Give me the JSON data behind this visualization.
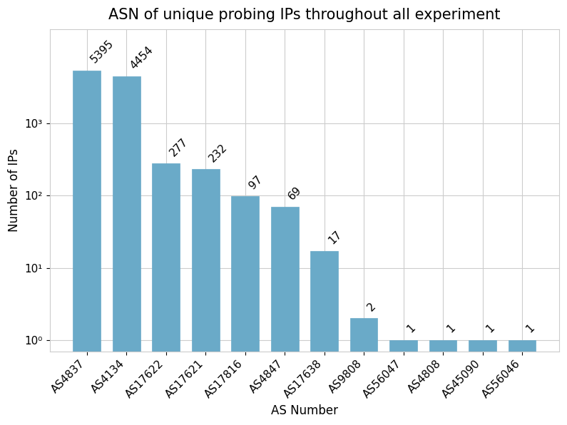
{
  "categories": [
    "AS4837",
    "AS4134",
    "AS17622",
    "AS17621",
    "AS17816",
    "AS4847",
    "AS17638",
    "AS9808",
    "AS56047",
    "AS4808",
    "AS45090",
    "AS56046"
  ],
  "values": [
    5395,
    4454,
    277,
    232,
    97,
    69,
    17,
    2,
    1,
    1,
    1,
    1
  ],
  "bar_color": "#6aaac8",
  "bar_edgecolor": "#6aaac8",
  "title": "ASN of unique probing IPs throughout all experiment",
  "xlabel": "AS Number",
  "ylabel": "Number of IPs",
  "title_fontsize": 15,
  "label_fontsize": 12,
  "tick_fontsize": 11,
  "annotation_fontsize": 11,
  "background_color": "#ffffff",
  "grid_color": "#cccccc",
  "ytick_labels": [
    "10⁰",
    "10¹",
    "10²",
    "10³"
  ],
  "ytick_values": [
    1,
    10,
    100,
    1000
  ]
}
